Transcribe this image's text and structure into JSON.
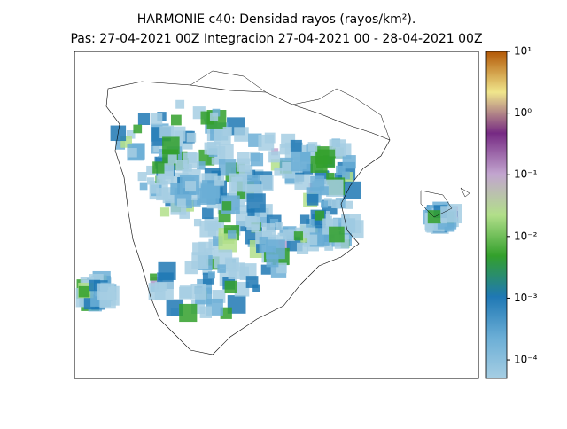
{
  "title": [
    "HARMONIE c40: Densidad rayos  (rayos/km²).",
    "Pas: 27-04-2021 00Z Integracion 27-04-2021 00 - 28-04-2021 00Z"
  ],
  "colorbar": {
    "scale": "log",
    "lim": [
      5e-05,
      10
    ],
    "ticks": [
      {
        "value": 10,
        "label": "10¹"
      },
      {
        "value": 1,
        "label": "10⁰"
      },
      {
        "value": 0.1,
        "label": "10⁻¹"
      },
      {
        "value": 0.01,
        "label": "10⁻²"
      },
      {
        "value": 0.001,
        "label": "10⁻³"
      },
      {
        "value": 0.0001,
        "label": "10⁻⁴"
      }
    ],
    "colors": [
      "#a6cee3",
      "#6baed6",
      "#1f78b4",
      "#33a02c",
      "#b2df8a",
      "#c2a5cf",
      "#762a83",
      "#f0e68c",
      "#b35806"
    ]
  }
}
